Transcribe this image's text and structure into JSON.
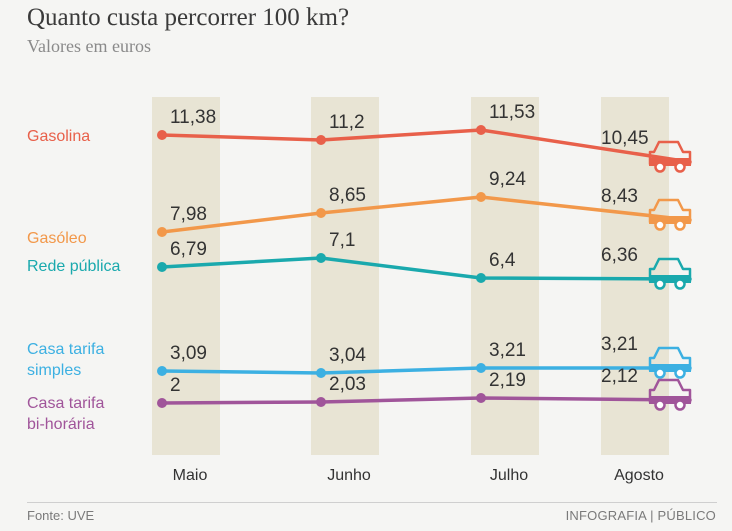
{
  "header": {
    "title": "Quanto custa percorrer 100 km?",
    "subtitle": "Valores em euros"
  },
  "footer": {
    "source": "Fonte: UVE",
    "credit": "INFOGRAFIA | PÚBLICO"
  },
  "chart_data": {
    "type": "line",
    "title": "Quanto custa percorrer 100 km?",
    "subtitle": "Valores em euros",
    "categories": [
      "Maio",
      "Junho",
      "Julho",
      "Agosto"
    ],
    "ylabel": "Valores em euros",
    "ylim": [
      0,
      12
    ],
    "series": [
      {
        "key": "gasolina",
        "name": "Gasolina",
        "name_lines": [
          "Gasolina"
        ],
        "color": "#e8604a",
        "values": [
          11.38,
          11.2,
          11.53,
          10.45
        ],
        "labels": [
          "11,38",
          "11,2",
          "11,53",
          "10,45"
        ]
      },
      {
        "key": "gasoleo",
        "name": "Gasóleo",
        "name_lines": [
          "Gasóleo"
        ],
        "color": "#f2984a",
        "values": [
          7.98,
          8.65,
          9.24,
          8.43
        ],
        "labels": [
          "7,98",
          "8,65",
          "9,24",
          "8,43"
        ]
      },
      {
        "key": "rede-publica",
        "name": "Rede pública",
        "name_lines": [
          "Rede pública"
        ],
        "color": "#1aa9ad",
        "values": [
          6.79,
          7.1,
          6.4,
          6.36
        ],
        "labels": [
          "6,79",
          "7,1",
          "6,4",
          "6,36"
        ]
      },
      {
        "key": "casa-tarifa-simples",
        "name": "Casa tarifa simples",
        "name_lines": [
          "Casa tarifa",
          "simples"
        ],
        "color": "#3cb0e2",
        "values": [
          3.09,
          3.04,
          3.21,
          3.21
        ],
        "labels": [
          "3,09",
          "3,04",
          "3,21",
          "3,21"
        ]
      },
      {
        "key": "casa-tarifa-bi-horaria",
        "name": "Casa tarifa bi-horária",
        "name_lines": [
          "Casa tarifa",
          "bi-horária"
        ],
        "color": "#a0559a",
        "values": [
          2,
          2.03,
          2.19,
          2.12
        ],
        "labels": [
          "2",
          "2,03",
          "2,19",
          "2,12"
        ]
      }
    ]
  },
  "colors": {
    "band": "#e8e4d4",
    "background": "#f5f5f3",
    "text": "#3a3a3a"
  }
}
